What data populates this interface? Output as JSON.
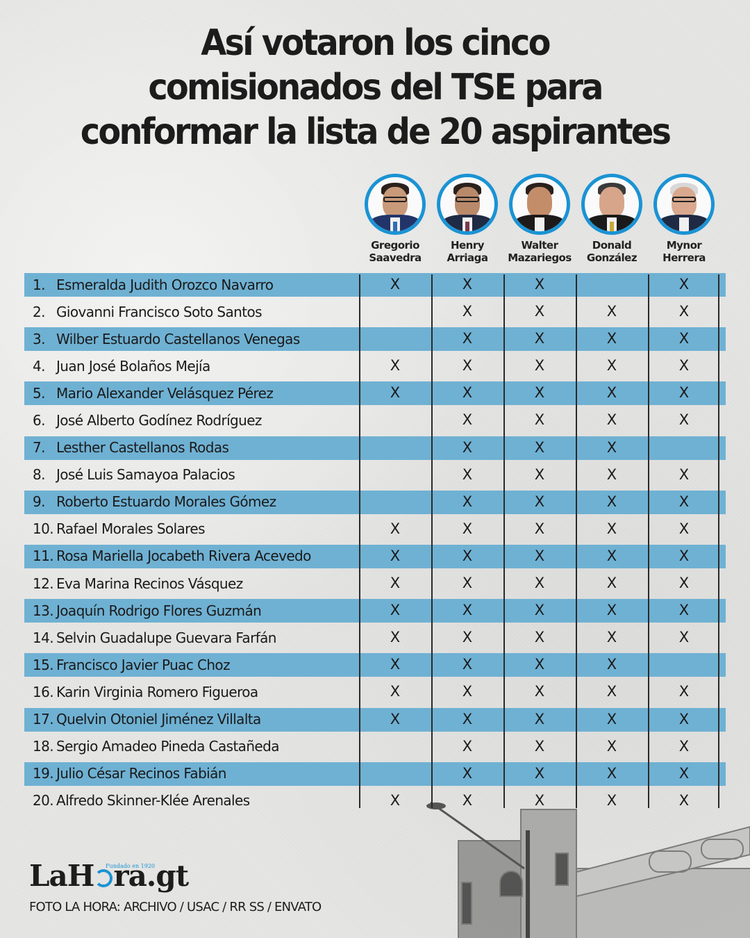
{
  "title": {
    "lines": [
      "Así votaron los cinco",
      "comisionados del TSE para",
      "conformar la lista de 20 aspirantes"
    ]
  },
  "colors": {
    "stripe": "#6fb1d3",
    "avatar_ring": "#1a93d4",
    "text": "#1a1a1a",
    "background": "#e6e6e4"
  },
  "commissioners": [
    {
      "first": "Gregorio",
      "last": "Saavedra",
      "photo_icon": "avatar-photo"
    },
    {
      "first": "Henry",
      "last": "Arriaga",
      "photo_icon": "avatar-photo"
    },
    {
      "first": "Walter",
      "last": "Mazariegos",
      "photo_icon": "avatar-photo"
    },
    {
      "first": "Donald",
      "last": "González",
      "photo_icon": "avatar-photo"
    },
    {
      "first": "Mynor",
      "last": "Herrera",
      "photo_icon": "avatar-photo"
    }
  ],
  "vote_mark": "X",
  "candidates": [
    {
      "num": "1.",
      "name": "Esmeralda Judith Orozco Navarro",
      "votes": [
        "X",
        "X",
        "X",
        "",
        "X"
      ]
    },
    {
      "num": "2.",
      "name": "Giovanni Francisco Soto Santos",
      "votes": [
        "",
        "X",
        "X",
        "X",
        "X"
      ]
    },
    {
      "num": "3.",
      "name": "Wilber Estuardo Castellanos Venegas",
      "votes": [
        "",
        "X",
        "X",
        "X",
        "X"
      ]
    },
    {
      "num": "4.",
      "name": "Juan José Bolaños Mejía",
      "votes": [
        "X",
        "X",
        "X",
        "X",
        "X"
      ]
    },
    {
      "num": "5.",
      "name": "Mario Alexander Velásquez Pérez",
      "votes": [
        "X",
        "X",
        "X",
        "X",
        "X"
      ]
    },
    {
      "num": "6.",
      "name": "José Alberto Godínez Rodríguez",
      "votes": [
        "",
        "X",
        "X",
        "X",
        "X"
      ]
    },
    {
      "num": "7.",
      "name": "Lesther Castellanos Rodas",
      "votes": [
        "",
        "X",
        "X",
        "X",
        ""
      ]
    },
    {
      "num": "8.",
      "name": "José Luis Samayoa Palacios",
      "votes": [
        "",
        "X",
        "X",
        "X",
        "X"
      ]
    },
    {
      "num": "9.",
      "name": "Roberto Estuardo Morales Gómez",
      "votes": [
        "",
        "X",
        "X",
        "X",
        "X"
      ]
    },
    {
      "num": "10.",
      "name": "Rafael Morales Solares",
      "votes": [
        "X",
        "X",
        "X",
        "X",
        "X"
      ]
    },
    {
      "num": "11.",
      "name": "Rosa Mariella Jocabeth Rivera Acevedo",
      "votes": [
        "X",
        "X",
        "X",
        "X",
        "X"
      ]
    },
    {
      "num": "12.",
      "name": "Eva Marina Recinos Vásquez",
      "votes": [
        "X",
        "X",
        "X",
        "X",
        "X"
      ]
    },
    {
      "num": "13.",
      "name": "Joaquín Rodrigo Flores Guzmán",
      "votes": [
        "X",
        "X",
        "X",
        "X",
        "X"
      ]
    },
    {
      "num": "14.",
      "name": "Selvin Guadalupe Guevara Farfán",
      "votes": [
        "X",
        "X",
        "X",
        "X",
        "X"
      ]
    },
    {
      "num": "15.",
      "name": "Francisco Javier Puac Choz",
      "votes": [
        "X",
        "X",
        "X",
        "X",
        ""
      ]
    },
    {
      "num": "16.",
      "name": "Karin Virginia Romero Figueroa",
      "votes": [
        "X",
        "X",
        "X",
        "X",
        "X"
      ]
    },
    {
      "num": "17.",
      "name": "Quelvin Otoniel Jiménez Villalta",
      "votes": [
        "X",
        "X",
        "X",
        "X",
        "X"
      ]
    },
    {
      "num": "18.",
      "name": "Sergio Amadeo Pineda Castañeda",
      "votes": [
        "",
        "X",
        "X",
        "X",
        "X"
      ]
    },
    {
      "num": "19.",
      "name": "Julio César Recinos Fabián",
      "votes": [
        "",
        "X",
        "X",
        "X",
        "X"
      ]
    },
    {
      "num": "20.",
      "name": "Alfredo Skinner-Klée Arenales",
      "votes": [
        "X",
        "X",
        "X",
        "X",
        "X"
      ]
    }
  ],
  "footer": {
    "logo_left": "LaH",
    "logo_right": "ra.gt",
    "logo_tagline": "Fundado en 1920",
    "credit": "FOTO LA HORA:  ARCHIVO / USAC / RR SS / ENVATO"
  }
}
